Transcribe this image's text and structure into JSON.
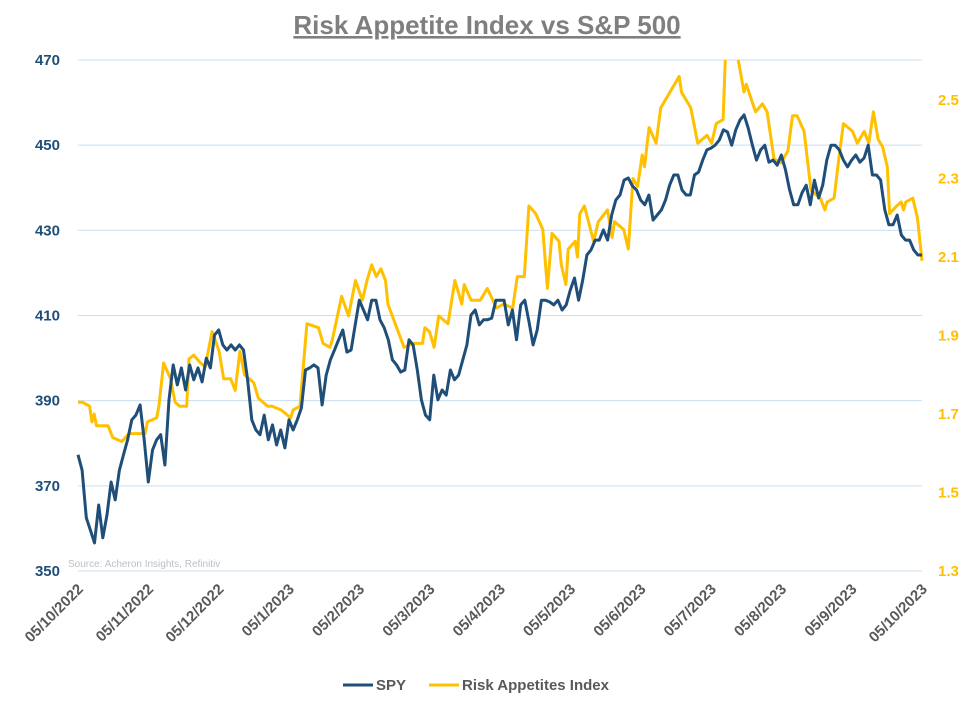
{
  "chart_data": {
    "type": "line",
    "title": "Risk Appetite Index vs S&P 500",
    "source": "Source: Acheron Insights, Refinitiv",
    "x_tick_labels": [
      "05/10/2022",
      "05/11/2022",
      "05/12/2022",
      "05/1/2023",
      "05/2/2023",
      "05/3/2023",
      "05/4/2023",
      "05/5/2023",
      "05/6/2023",
      "05/7/2023",
      "05/8/2023",
      "05/9/2023",
      "05/10/2023"
    ],
    "x_range": [
      "2022-10-05",
      "2023-10-05"
    ],
    "left_axis": {
      "min": 350,
      "max": 470,
      "ticks": [
        "350",
        "370",
        "390",
        "410",
        "430",
        "450",
        "470"
      ]
    },
    "right_axis": {
      "min": 1.3,
      "max": 2.6,
      "ticks": [
        "1.3",
        "1.5",
        "1.7",
        "1.9",
        "2.1",
        "2.3",
        "2.5"
      ]
    },
    "grid": true,
    "legend_position": "bottom",
    "series": [
      {
        "name": "SPY",
        "axis": "left",
        "color": "#1f4e79",
        "sampling": "evenly spaced over x_range",
        "values": [
          377.3,
          373.7,
          362.5,
          359.6,
          356.6,
          365.5,
          357.8,
          363.2,
          370.9,
          366.7,
          373.7,
          377.3,
          380.8,
          385.5,
          386.6,
          389,
          380.8,
          370.9,
          378.4,
          380.8,
          382,
          374.9,
          390.2,
          398.4,
          393.7,
          397.7,
          392.5,
          398.4,
          394.9,
          397.7,
          394.4,
          400,
          397.7,
          405.4,
          406.6,
          403.1,
          401.9,
          403.1,
          401.9,
          403.1,
          401.9,
          394.9,
          385.5,
          383.1,
          382,
          386.6,
          380.8,
          384.3,
          379.6,
          383.1,
          378.9,
          385.5,
          383.1,
          385.5,
          388.3,
          397.2,
          397.7,
          398.4,
          397.7,
          389,
          396,
          399.6,
          401.9,
          404.3,
          406.6,
          401.4,
          401.9,
          407.8,
          413.6,
          411.3,
          409,
          413.6,
          413.6,
          409,
          407.1,
          404.3,
          399.6,
          398.4,
          396.7,
          397.2,
          404.3,
          403.1,
          397.2,
          390.2,
          386.6,
          385.5,
          396,
          390.2,
          392.5,
          391.3,
          397.2,
          394.9,
          396,
          399.6,
          403.1,
          410.1,
          411.3,
          407.8,
          409,
          409,
          409.4,
          413.6,
          413.6,
          413.6,
          407.8,
          411.3,
          404.3,
          412.5,
          413.6,
          408.5,
          403.1,
          406.6,
          413.6,
          413.6,
          413.2,
          412.5,
          413.6,
          411.3,
          412.5,
          416,
          418.8,
          413.6,
          418.3,
          424.2,
          425.4,
          427.7,
          427.7,
          430.1,
          427.7,
          433.6,
          437.1,
          438.3,
          441.8,
          442.3,
          440.4,
          439.5,
          437.1,
          436,
          438.3,
          432.4,
          433.6,
          434.8,
          437.1,
          440.6,
          443,
          443,
          439.5,
          438.3,
          438.3,
          443,
          443.7,
          446.5,
          448.9,
          449.3,
          450,
          451.2,
          453.6,
          453.1,
          450,
          453.6,
          455.9,
          457.1,
          454,
          450,
          446.5,
          448.9,
          450,
          446,
          446.5,
          445.3,
          447.7,
          444.2,
          439.5,
          436,
          436,
          438.8,
          440.6,
          436,
          441.8,
          437.6,
          440.6,
          446.5,
          450,
          450,
          448.9,
          446.5,
          444.9,
          446.5,
          447.7,
          446,
          447,
          450,
          443,
          443,
          441.8,
          434.8,
          431.3,
          431.3,
          433.6,
          428.9,
          427.7,
          427.7,
          425.4,
          424.2,
          424.2
        ]
      },
      {
        "name": "Risk Appetites Index",
        "axis": "right",
        "color": "#ffc000",
        "points": [
          [
            "2022-10-05",
            1.73
          ],
          [
            "2022-10-07",
            1.73
          ],
          [
            "2022-10-10",
            1.72
          ],
          [
            "2022-10-11",
            1.68
          ],
          [
            "2022-10-12",
            1.7
          ],
          [
            "2022-10-13",
            1.67
          ],
          [
            "2022-10-18",
            1.67
          ],
          [
            "2022-10-20",
            1.64
          ],
          [
            "2022-10-24",
            1.63
          ],
          [
            "2022-10-27",
            1.65
          ],
          [
            "2022-11-02",
            1.65
          ],
          [
            "2022-11-03",
            1.65
          ],
          [
            "2022-11-04",
            1.68
          ],
          [
            "2022-11-08",
            1.69
          ],
          [
            "2022-11-09",
            1.72
          ],
          [
            "2022-11-11",
            1.83
          ],
          [
            "2022-11-14",
            1.79
          ],
          [
            "2022-11-16",
            1.73
          ],
          [
            "2022-11-18",
            1.72
          ],
          [
            "2022-11-21",
            1.72
          ],
          [
            "2022-11-22",
            1.84
          ],
          [
            "2022-11-24",
            1.85
          ],
          [
            "2022-11-27",
            1.83
          ],
          [
            "2022-11-29",
            1.82
          ],
          [
            "2022-12-02",
            1.91
          ],
          [
            "2022-12-05",
            1.86
          ],
          [
            "2022-12-07",
            1.79
          ],
          [
            "2022-12-10",
            1.79
          ],
          [
            "2022-12-12",
            1.76
          ],
          [
            "2022-12-14",
            1.86
          ],
          [
            "2022-12-16",
            1.8
          ],
          [
            "2022-12-20",
            1.78
          ],
          [
            "2022-12-22",
            1.74
          ],
          [
            "2022-12-26",
            1.72
          ],
          [
            "2022-12-28",
            1.72
          ],
          [
            "2023-01-01",
            1.71
          ],
          [
            "2023-01-05",
            1.69
          ],
          [
            "2023-01-06",
            1.71
          ],
          [
            "2023-01-09",
            1.72
          ],
          [
            "2023-01-12",
            1.93
          ],
          [
            "2023-01-17",
            1.92
          ],
          [
            "2023-01-19",
            1.88
          ],
          [
            "2023-01-22",
            1.87
          ],
          [
            "2023-01-23",
            1.89
          ],
          [
            "2023-01-27",
            2.0
          ],
          [
            "2023-01-30",
            1.95
          ],
          [
            "2023-02-02",
            2.04
          ],
          [
            "2023-02-05",
            1.99
          ],
          [
            "2023-02-07",
            2.04
          ],
          [
            "2023-02-09",
            2.08
          ],
          [
            "2023-02-11",
            2.05
          ],
          [
            "2023-02-13",
            2.07
          ],
          [
            "2023-02-15",
            2.04
          ],
          [
            "2023-02-16",
            1.98
          ],
          [
            "2023-02-23",
            1.87
          ],
          [
            "2023-02-27",
            1.88
          ],
          [
            "2023-03-03",
            1.88
          ],
          [
            "2023-03-04",
            1.92
          ],
          [
            "2023-03-06",
            1.91
          ],
          [
            "2023-03-08",
            1.87
          ],
          [
            "2023-03-10",
            1.95
          ],
          [
            "2023-03-14",
            1.93
          ],
          [
            "2023-03-17",
            2.04
          ],
          [
            "2023-03-20",
            1.98
          ],
          [
            "2023-03-21",
            2.03
          ],
          [
            "2023-03-24",
            1.99
          ],
          [
            "2023-03-28",
            1.99
          ],
          [
            "2023-03-31",
            2.02
          ],
          [
            "2023-04-04",
            1.97
          ],
          [
            "2023-04-07",
            1.98
          ],
          [
            "2023-04-11",
            1.97
          ],
          [
            "2023-04-13",
            2.05
          ],
          [
            "2023-04-16",
            2.05
          ],
          [
            "2023-04-18",
            2.23
          ],
          [
            "2023-04-21",
            2.21
          ],
          [
            "2023-04-24",
            2.17
          ],
          [
            "2023-04-26",
            2.02
          ],
          [
            "2023-04-28",
            2.16
          ],
          [
            "2023-05-01",
            2.14
          ],
          [
            "2023-05-02",
            2.08
          ],
          [
            "2023-05-04",
            2.03
          ],
          [
            "2023-05-05",
            2.12
          ],
          [
            "2023-05-08",
            2.14
          ],
          [
            "2023-05-09",
            2.1
          ],
          [
            "2023-05-10",
            2.21
          ],
          [
            "2023-05-12",
            2.23
          ],
          [
            "2023-05-16",
            2.14
          ],
          [
            "2023-05-18",
            2.19
          ],
          [
            "2023-05-22",
            2.22
          ],
          [
            "2023-05-24",
            2.15
          ],
          [
            "2023-05-25",
            2.19
          ],
          [
            "2023-05-29",
            2.17
          ],
          [
            "2023-05-31",
            2.12
          ],
          [
            "2023-06-02",
            2.3
          ],
          [
            "2023-06-04",
            2.28
          ],
          [
            "2023-06-06",
            2.36
          ],
          [
            "2023-06-07",
            2.33
          ],
          [
            "2023-06-09",
            2.43
          ],
          [
            "2023-06-12",
            2.39
          ],
          [
            "2023-06-14",
            2.48
          ],
          [
            "2023-06-17",
            2.51
          ],
          [
            "2023-06-22",
            2.56
          ],
          [
            "2023-06-23",
            2.52
          ],
          [
            "2023-06-27",
            2.48
          ],
          [
            "2023-06-29",
            2.42
          ],
          [
            "2023-06-30",
            2.39
          ],
          [
            "2023-07-04",
            2.41
          ],
          [
            "2023-07-06",
            2.39
          ],
          [
            "2023-07-08",
            2.44
          ],
          [
            "2023-07-11",
            2.45
          ],
          [
            "2023-07-12",
            2.62
          ],
          [
            "2023-07-17",
            2.62
          ],
          [
            "2023-07-20",
            2.52
          ],
          [
            "2023-07-21",
            2.54
          ],
          [
            "2023-07-25",
            2.47
          ],
          [
            "2023-07-28",
            2.49
          ],
          [
            "2023-07-30",
            2.47
          ],
          [
            "2023-08-02",
            2.35
          ],
          [
            "2023-08-05",
            2.34
          ],
          [
            "2023-08-08",
            2.37
          ],
          [
            "2023-08-10",
            2.46
          ],
          [
            "2023-08-12",
            2.46
          ],
          [
            "2023-08-15",
            2.42
          ],
          [
            "2023-08-18",
            2.27
          ],
          [
            "2023-08-20",
            2.26
          ],
          [
            "2023-08-22",
            2.25
          ],
          [
            "2023-08-24",
            2.22
          ],
          [
            "2023-08-25",
            2.24
          ],
          [
            "2023-08-28",
            2.25
          ],
          [
            "2023-08-30",
            2.35
          ],
          [
            "2023-09-01",
            2.44
          ],
          [
            "2023-09-05",
            2.42
          ],
          [
            "2023-09-07",
            2.39
          ],
          [
            "2023-09-10",
            2.42
          ],
          [
            "2023-09-12",
            2.39
          ],
          [
            "2023-09-14",
            2.47
          ],
          [
            "2023-09-16",
            2.4
          ],
          [
            "2023-09-18",
            2.38
          ],
          [
            "2023-09-20",
            2.33
          ],
          [
            "2023-09-21",
            2.21
          ],
          [
            "2023-09-24",
            2.23
          ],
          [
            "2023-09-26",
            2.24
          ],
          [
            "2023-09-27",
            2.22
          ],
          [
            "2023-09-28",
            2.24
          ],
          [
            "2023-10-01",
            2.25
          ],
          [
            "2023-10-03",
            2.2
          ],
          [
            "2023-10-05",
            2.09
          ]
        ]
      }
    ]
  },
  "colors": {
    "spy": "#1f4e79",
    "risk": "#ffc000",
    "grid": "#c9dff1",
    "title": "#7f7f7f"
  }
}
